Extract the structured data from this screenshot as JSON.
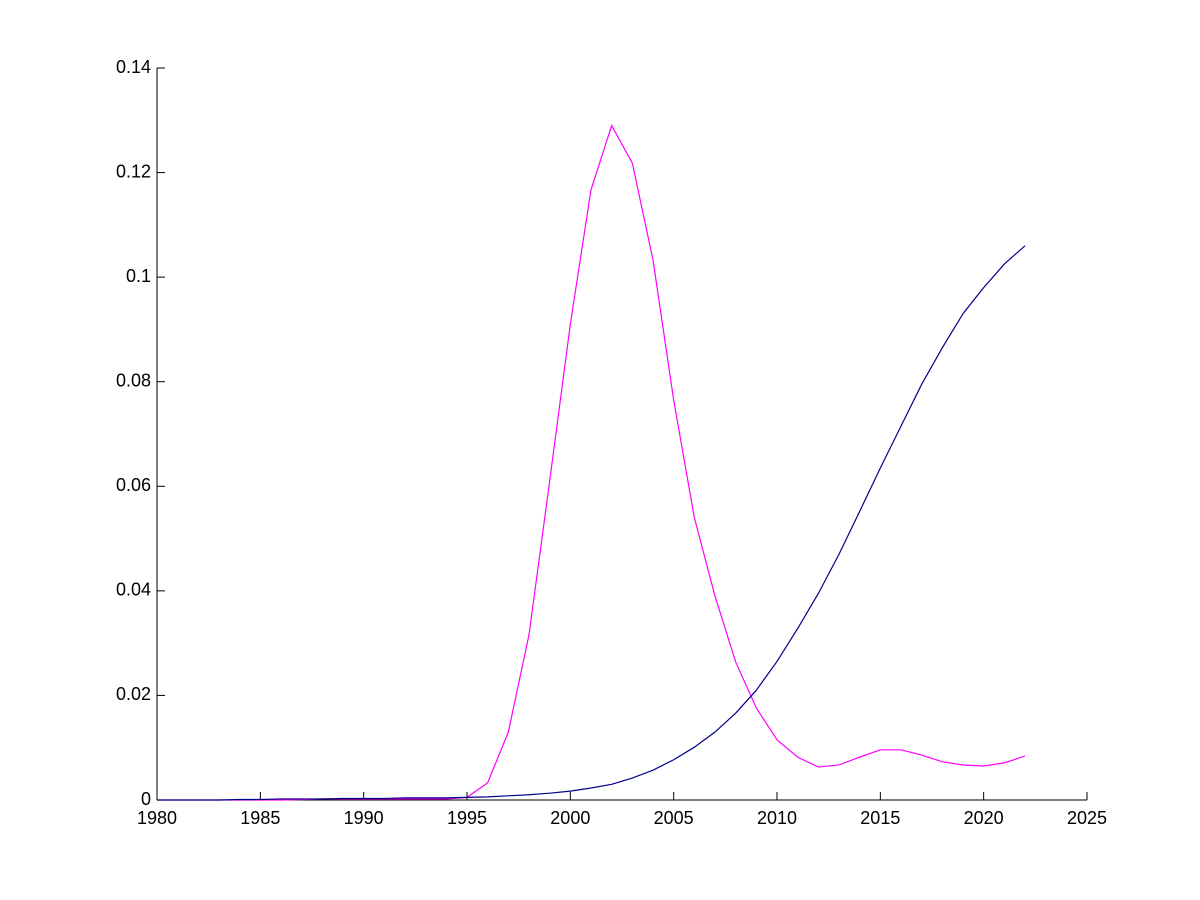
{
  "chart_data": {
    "type": "line",
    "x": [
      1980,
      1981,
      1982,
      1983,
      1984,
      1985,
      1986,
      1987,
      1988,
      1989,
      1990,
      1991,
      1992,
      1993,
      1994,
      1995,
      1996,
      1997,
      1998,
      1999,
      2000,
      2001,
      2002,
      2003,
      2004,
      2005,
      2006,
      2007,
      2008,
      2009,
      2010,
      2011,
      2012,
      2013,
      2014,
      2015,
      2016,
      2017,
      2018,
      2019,
      2020,
      2021,
      2022
    ],
    "series": [
      {
        "color": "#ff00ff",
        "values": [
          0,
          0,
          0,
          0,
          0,
          0,
          0,
          0.0001,
          0.0002,
          0.0002,
          0.0002,
          0.0002,
          0.0002,
          0.0002,
          0.0002,
          0.0005,
          0.0033,
          0.013,
          0.0316,
          0.061,
          0.091,
          0.1167,
          0.129,
          0.1218,
          0.1033,
          0.0765,
          0.054,
          0.039,
          0.0264,
          0.0176,
          0.0115,
          0.0082,
          0.0063,
          0.0067,
          0.0082,
          0.0096,
          0.0096,
          0.0086,
          0.0073,
          0.0067,
          0.0065,
          0.0071,
          0.0084
        ]
      },
      {
        "color": "#00008b",
        "values": [
          0,
          0,
          0,
          0,
          0.0001,
          0.0001,
          0.0002,
          0.0002,
          0.0002,
          0.0003,
          0.0003,
          0.0003,
          0.0004,
          0.0004,
          0.0004,
          0.0005,
          0.0006,
          0.0008,
          0.001,
          0.0013,
          0.0017,
          0.0023,
          0.003,
          0.0042,
          0.0057,
          0.0077,
          0.0101,
          0.013,
          0.0166,
          0.021,
          0.0265,
          0.0328,
          0.0395,
          0.047,
          0.0552,
          0.0635,
          0.0715,
          0.0795,
          0.0865,
          0.093,
          0.098,
          0.1025,
          0.106
        ]
      }
    ],
    "xlim": [
      1980,
      2025
    ],
    "xticks": [
      1980,
      1985,
      1990,
      1995,
      2000,
      2005,
      2010,
      2015,
      2020,
      2025
    ],
    "ylim": [
      0,
      0.14
    ],
    "yticks": [
      0,
      0.02,
      0.04,
      0.06,
      0.08,
      0.1,
      0.12,
      0.14
    ]
  }
}
